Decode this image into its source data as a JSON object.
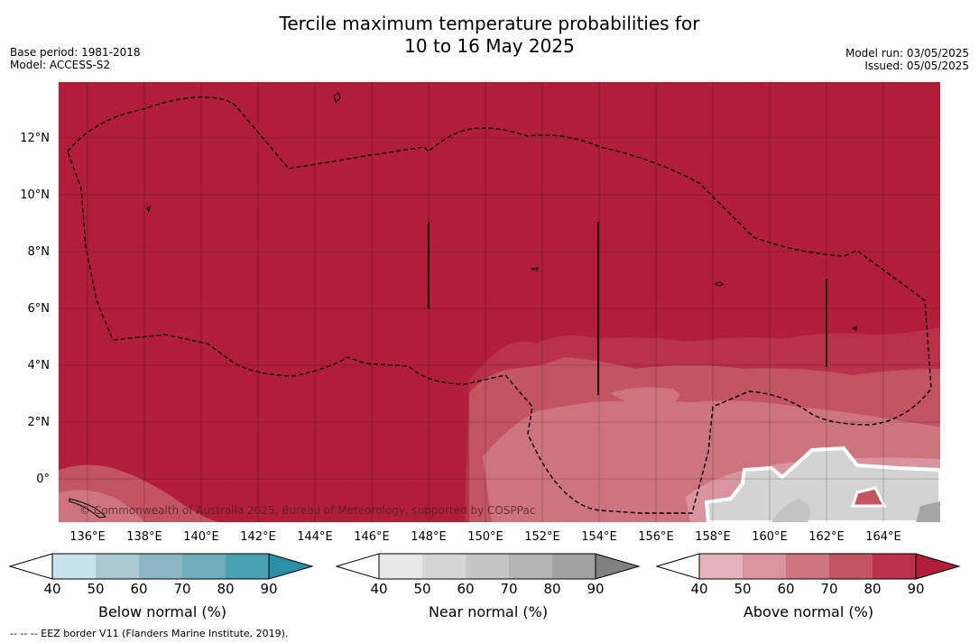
{
  "title_line1": "Tercile maximum temperature probabilities for",
  "title_line2": "10 to 16 May 2025",
  "meta_left": [
    "Base period: 1981-2018",
    "Model: ACCESS-S2"
  ],
  "meta_right": [
    "Model run: 03/05/2025",
    "Issued: 05/05/2025"
  ],
  "copyright": "© Commonwealth of Australia 2025, Bureau of Meteorology, supported by COSPPac",
  "footnote": "--  --  -- EEZ border V11 (Flanders Marine Institute, 2019).",
  "latitudes": [
    "12°N",
    "10°N",
    "8°N",
    "6°N",
    "4°N",
    "2°N",
    "0°"
  ],
  "longitudes": [
    "136°E",
    "138°E",
    "140°E",
    "142°E",
    "144°E",
    "146°E",
    "148°E",
    "150°E",
    "152°E",
    "154°E",
    "156°E",
    "158°E",
    "160°E",
    "162°E",
    "164°E"
  ],
  "colorbars": [
    {
      "label": "Below normal (%)",
      "ticks": [
        "40",
        "50",
        "60",
        "70",
        "80",
        "90"
      ],
      "colors": [
        "#c8e3e9",
        "#a9c8cf",
        "#8bb7c2",
        "#6eacbb",
        "#4aa2b3",
        "#2a8fa6"
      ],
      "under": "#ffffff"
    },
    {
      "label": "Near normal (%)",
      "ticks": [
        "40",
        "50",
        "60",
        "70",
        "80",
        "90"
      ],
      "colors": [
        "#e8e8e8",
        "#d6d6d6",
        "#c6c6c6",
        "#b4b4b4",
        "#a2a2a2",
        "#808080"
      ],
      "under": "#ffffff"
    },
    {
      "label": "Above normal (%)",
      "ticks": [
        "40",
        "50",
        "60",
        "70",
        "80",
        "90"
      ],
      "colors": [
        "#e3b6bd",
        "#d9959f",
        "#cd747f",
        "#c35462",
        "#b8324a",
        "#b01e3a"
      ],
      "under": "#ffffff"
    }
  ],
  "map_colors": {
    "above_90": "#b01e3a",
    "above_80": "#b8324a",
    "above_70": "#c35462",
    "above_60": "#cd747f",
    "above_50": "#d9959f",
    "near_40": "#d3d3d3",
    "near_50": "#c4c4c4",
    "near_70": "#a5a5a5"
  }
}
